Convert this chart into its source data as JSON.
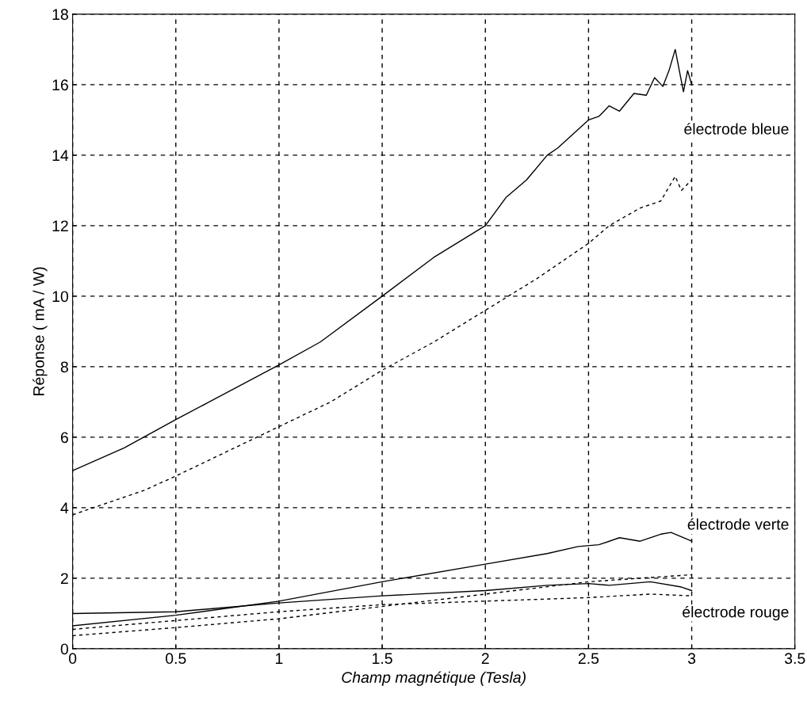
{
  "chart_data": {
    "type": "line",
    "xlabel": "Champ magnétique (Tesla)",
    "ylabel": "Réponse ( mA / W)",
    "xlim": [
      0,
      3.5
    ],
    "xticks": [
      0,
      0.5,
      1,
      1.5,
      2,
      2.5,
      3,
      3.5
    ],
    "ylim": [
      0,
      18
    ],
    "yticks": [
      0,
      2,
      4,
      6,
      8,
      10,
      12,
      14,
      16,
      18
    ],
    "grid": true,
    "marker": "none",
    "series": [
      {
        "color": "#000000",
        "line_style": "solid",
        "x": [
          0,
          0.25,
          0.5,
          1,
          1.2,
          1.5,
          1.75,
          2,
          2.1,
          2.2,
          2.3,
          2.35,
          2.5,
          2.55,
          2.6,
          2.65,
          2.72,
          2.78,
          2.82,
          2.86,
          2.89,
          2.92,
          2.96,
          2.98,
          3.0
        ],
        "values": [
          5.05,
          5.7,
          6.5,
          8.05,
          8.7,
          10.0,
          11.1,
          12.0,
          12.8,
          13.3,
          14.0,
          14.2,
          15.0,
          15.1,
          15.4,
          15.25,
          15.75,
          15.7,
          16.2,
          15.95,
          16.4,
          17.0,
          15.8,
          16.4,
          16.0
        ]
      },
      {
        "color": "#000000",
        "line_style": "dashed",
        "x": [
          0,
          0.35,
          0.5,
          0.75,
          1,
          1.25,
          1.5,
          1.75,
          2,
          2.25,
          2.5,
          2.6,
          2.75,
          2.85,
          2.92,
          2.95,
          3.0
        ],
        "values": [
          3.8,
          4.5,
          4.9,
          5.6,
          6.3,
          7.0,
          7.9,
          8.7,
          9.6,
          10.5,
          11.5,
          12.0,
          12.5,
          12.7,
          13.4,
          13.0,
          13.3
        ]
      },
      {
        "color": "#000000",
        "line_style": "solid",
        "x": [
          0,
          0.5,
          1,
          1.5,
          2,
          2.3,
          2.45,
          2.55,
          2.65,
          2.75,
          2.85,
          2.9,
          3.0
        ],
        "values": [
          0.65,
          0.95,
          1.35,
          1.9,
          2.4,
          2.7,
          2.9,
          2.95,
          3.15,
          3.05,
          3.25,
          3.3,
          3.05
        ]
      },
      {
        "color": "#000000",
        "line_style": "dashed",
        "x": [
          0,
          0.5,
          1,
          1.5,
          2,
          2.5,
          3.0
        ],
        "values": [
          0.37,
          0.6,
          0.85,
          1.2,
          1.55,
          1.9,
          2.1
        ]
      },
      {
        "color": "#000000",
        "line_style": "solid",
        "x": [
          0,
          0.5,
          1,
          1.5,
          2,
          2.3,
          2.5,
          2.6,
          2.8,
          2.95,
          3.0
        ],
        "values": [
          1.0,
          1.05,
          1.3,
          1.5,
          1.65,
          1.8,
          1.85,
          1.8,
          1.9,
          1.75,
          1.65
        ]
      },
      {
        "color": "#000000",
        "line_style": "dashed",
        "x": [
          0,
          0.5,
          1,
          1.5,
          2,
          2.5,
          2.8,
          3.0
        ],
        "values": [
          0.55,
          0.8,
          1.05,
          1.25,
          1.35,
          1.45,
          1.55,
          1.5
        ]
      }
    ],
    "annotations": [
      "électrode bleue",
      "électrode verte",
      "électrode rouge"
    ]
  }
}
